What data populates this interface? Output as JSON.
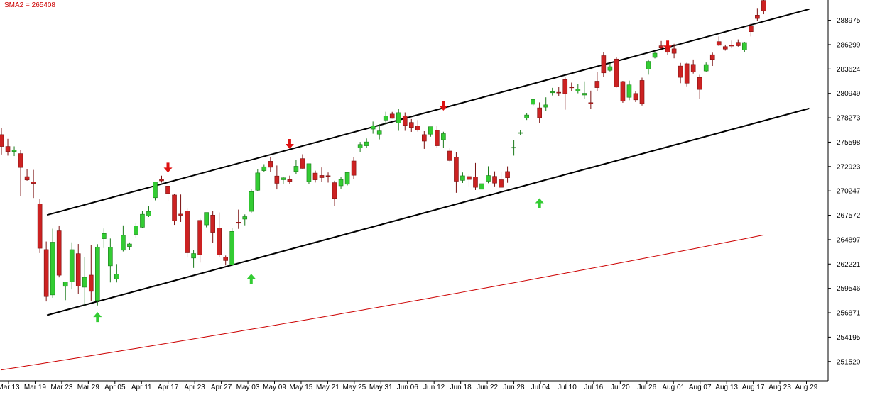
{
  "indicator_label": "SMA2 = 265408",
  "colors": {
    "bull": "#33cc33",
    "bear": "#cc2222",
    "sma": "#cc0000",
    "channel": "#000000",
    "arrow_up": "#33cc33",
    "arrow_down": "#dd1111"
  },
  "chart_data": {
    "type": "candlestick",
    "y_ticks": [
      "288975",
      "286299",
      "283624",
      "280949",
      "278273",
      "275598",
      "272923",
      "270247",
      "267572",
      "264897",
      "262221",
      "259546",
      "256871",
      "254195",
      "251520"
    ],
    "x_ticks": [
      "Mar 13",
      "Mar 19",
      "Mar 23",
      "Mar 29",
      "Apr 05",
      "Apr 11",
      "Apr 17",
      "Apr 23",
      "Apr 27",
      "May 03",
      "May 09",
      "May 15",
      "May 21",
      "May 25",
      "May 31",
      "Jun 06",
      "Jun 12",
      "Jun 18",
      "Jun 22",
      "Jun 28",
      "Jul 04",
      "Jul 10",
      "Jul 16",
      "Jul 20",
      "Jul 26",
      "Aug 01",
      "Aug 07",
      "Aug 13",
      "Aug 17",
      "Aug 23",
      "Aug 29"
    ],
    "ylim": [
      249400,
      291200
    ],
    "ohlc": [
      [
        276420,
        277160,
        274240,
        275120
      ],
      [
        275120,
        275960,
        274120,
        274570
      ],
      [
        274570,
        275130,
        274070,
        274710
      ],
      [
        274340,
        274710,
        269670,
        272820
      ],
      [
        271810,
        272660,
        271360,
        271450
      ],
      [
        271250,
        272550,
        269470,
        271070
      ],
      [
        268820,
        269330,
        263420,
        263950
      ],
      [
        263810,
        264690,
        258110,
        258650
      ],
      [
        258830,
        266100,
        258520,
        264620
      ],
      [
        265860,
        266450,
        260750,
        260990
      ],
      [
        259770,
        260160,
        258250,
        260270
      ],
      [
        260280,
        264600,
        259430,
        263800
      ],
      [
        263360,
        264420,
        258920,
        259810
      ],
      [
        259680,
        263010,
        257610,
        260760
      ],
      [
        261000,
        264320,
        258190,
        259220
      ],
      [
        258220,
        264400,
        257670,
        264090
      ],
      [
        265000,
        266120,
        263980,
        265570
      ],
      [
        262020,
        265020,
        260200,
        264080
      ],
      [
        260590,
        262220,
        260200,
        261100
      ],
      [
        263740,
        266460,
        263600,
        265370
      ],
      [
        264140,
        264590,
        263730,
        264420
      ],
      [
        265470,
        266730,
        265110,
        266410
      ],
      [
        266260,
        268070,
        266150,
        267680
      ],
      [
        267510,
        268600,
        267380,
        267990
      ],
      [
        269500,
        271260,
        269210,
        271210
      ],
      [
        271500,
        271920,
        271160,
        271350
      ],
      [
        270780,
        271130,
        269140,
        269960
      ],
      [
        269800,
        269930,
        266520,
        266960
      ],
      [
        267700,
        269850,
        266840,
        267570
      ],
      [
        268040,
        268290,
        262930,
        263450
      ],
      [
        262880,
        263800,
        261790,
        263370
      ],
      [
        267010,
        267180,
        262380,
        263240
      ],
      [
        266520,
        267820,
        266250,
        267880
      ],
      [
        267590,
        268030,
        264560,
        265700
      ],
      [
        266180,
        267880,
        262960,
        263230
      ],
      [
        262970,
        263150,
        262070,
        262600
      ],
      [
        262140,
        266160,
        262000,
        265800
      ],
      [
        266810,
        268190,
        266080,
        266700
      ],
      [
        267150,
        267670,
        266470,
        267420
      ],
      [
        268000,
        270480,
        267790,
        270160
      ],
      [
        270320,
        272650,
        270200,
        272220
      ],
      [
        272470,
        273180,
        272340,
        272890
      ],
      [
        273500,
        273960,
        272360,
        272840
      ],
      [
        271880,
        273030,
        270410,
        271080
      ],
      [
        271470,
        271800,
        271020,
        271680
      ],
      [
        271490,
        271920,
        271050,
        271280
      ],
      [
        272380,
        273640,
        272070,
        272950
      ],
      [
        273790,
        274270,
        272690,
        272720
      ],
      [
        271270,
        273190,
        271000,
        273230
      ],
      [
        272200,
        272470,
        271170,
        271460
      ],
      [
        271940,
        272820,
        271270,
        271700
      ],
      [
        271910,
        272270,
        271160,
        271880
      ],
      [
        271150,
        271360,
        268550,
        269420
      ],
      [
        270810,
        271740,
        270420,
        271490
      ],
      [
        270980,
        272300,
        270850,
        272270
      ],
      [
        273530,
        273920,
        271510,
        271960
      ],
      [
        274980,
        275620,
        274510,
        275340
      ],
      [
        275200,
        276000,
        274960,
        275620
      ],
      [
        277030,
        277860,
        276520,
        277400
      ],
      [
        276470,
        277560,
        275900,
        276830
      ],
      [
        278020,
        278930,
        277550,
        278470
      ],
      [
        278680,
        278920,
        278180,
        278210
      ],
      [
        277710,
        279250,
        276840,
        278830
      ],
      [
        278490,
        278860,
        276840,
        277440
      ],
      [
        277760,
        278130,
        276720,
        277210
      ],
      [
        277360,
        278020,
        276750,
        276910
      ],
      [
        276420,
        276800,
        274860,
        275710
      ],
      [
        276470,
        277180,
        276190,
        277290
      ],
      [
        276890,
        277360,
        274990,
        275200
      ],
      [
        275860,
        276740,
        274960,
        276530
      ],
      [
        274620,
        274910,
        273440,
        273580
      ],
      [
        273970,
        274530,
        270040,
        271310
      ],
      [
        271400,
        272270,
        271120,
        271900
      ],
      [
        271820,
        272050,
        270750,
        271500
      ],
      [
        271790,
        273310,
        270340,
        270640
      ],
      [
        270430,
        271350,
        270240,
        271040
      ],
      [
        271310,
        272950,
        271090,
        271930
      ],
      [
        271840,
        272390,
        270740,
        271100
      ],
      [
        271470,
        272280,
        270610,
        270640
      ],
      [
        272370,
        272940,
        271140,
        271690
      ],
      [
        275030,
        275840,
        274120,
        275030
      ],
      [
        276600,
        276950,
        276380,
        276640
      ],
      [
        278250,
        278790,
        278030,
        278580
      ],
      [
        279760,
        280160,
        279620,
        280290
      ],
      [
        279360,
        279960,
        277680,
        278280
      ],
      [
        279440,
        280520,
        279000,
        279690
      ],
      [
        281020,
        281560,
        280720,
        281130
      ],
      [
        281070,
        281680,
        280660,
        281060
      ],
      [
        282460,
        282700,
        279160,
        280920
      ],
      [
        281640,
        282130,
        281160,
        281620
      ],
      [
        281220,
        281950,
        280960,
        281410
      ],
      [
        280770,
        282270,
        280360,
        280960
      ],
      [
        279930,
        281250,
        279280,
        279830
      ],
      [
        282290,
        283270,
        281170,
        281580
      ],
      [
        285090,
        285510,
        282780,
        283200
      ],
      [
        283480,
        284260,
        283360,
        283880
      ],
      [
        284720,
        284890,
        281600,
        281690
      ],
      [
        282250,
        282320,
        279920,
        280090
      ],
      [
        280520,
        282350,
        280200,
        281880
      ],
      [
        280940,
        281180,
        279990,
        280240
      ],
      [
        282370,
        282680,
        279620,
        279830
      ],
      [
        283630,
        284670,
        283000,
        284460
      ],
      [
        284900,
        285490,
        284790,
        285360
      ],
      [
        286170,
        286700,
        285770,
        286000
      ],
      [
        286000,
        286470,
        285190,
        285460
      ],
      [
        285840,
        286390,
        284800,
        285350
      ],
      [
        283950,
        284290,
        282070,
        282710
      ],
      [
        284200,
        284310,
        281720,
        282070
      ],
      [
        284130,
        284670,
        283130,
        283310
      ],
      [
        282700,
        282990,
        280330,
        281380
      ],
      [
        283410,
        284340,
        283310,
        284110
      ],
      [
        285190,
        285420,
        283960,
        284680
      ],
      [
        286630,
        287200,
        286140,
        286230
      ],
      [
        286080,
        286300,
        285640,
        285810
      ],
      [
        286260,
        286740,
        285900,
        286140
      ],
      [
        286550,
        286870,
        286080,
        286180
      ],
      [
        285700,
        286600,
        285480,
        286530
      ],
      [
        288350,
        288650,
        287200,
        287720
      ],
      [
        289540,
        290320,
        288940,
        289170
      ],
      [
        291150,
        291280,
        289640,
        290020
      ]
    ],
    "sma_series": [
      {
        "index": 0,
        "value": 250600
      },
      {
        "index": 119,
        "value": 265408
      }
    ],
    "channel_lines": [
      {
        "name": "upper",
        "from": {
          "index": 6,
          "value": 267600
        },
        "to": {
          "index": 125,
          "value": 290200
        }
      },
      {
        "name": "lower",
        "from": {
          "index": 6,
          "value": 256600
        },
        "to": {
          "index": 125,
          "value": 279300
        }
      }
    ],
    "signal_arrows": [
      {
        "type": "up",
        "index": 15,
        "value": 256400
      },
      {
        "type": "down",
        "index": 26,
        "value": 272800
      },
      {
        "type": "up",
        "index": 39,
        "value": 260600
      },
      {
        "type": "down",
        "index": 45,
        "value": 275400
      },
      {
        "type": "down",
        "index": 69,
        "value": 279600
      },
      {
        "type": "up",
        "index": 84,
        "value": 268900
      },
      {
        "type": "down",
        "index": 104,
        "value": 286200
      }
    ]
  }
}
